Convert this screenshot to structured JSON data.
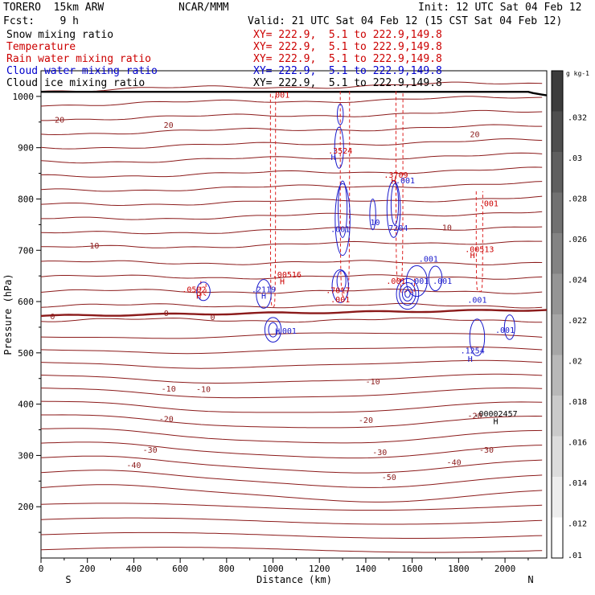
{
  "header": {
    "model": "TORERO  15km ARW",
    "center": "NCAR/MMM",
    "init": "Init: 12 UTC Sat 04 Feb 12",
    "fcst": "Fcst:    9 h",
    "valid": "Valid: 21 UTC Sat 04 Feb 12 (15 CST Sat 04 Feb 12)"
  },
  "fields": [
    {
      "name": "Snow mixing ratio",
      "xy": "XY= 222.9,  5.1 to 222.9,149.8",
      "color": "#000000"
    },
    {
      "name": "Temperature",
      "xy": "XY= 222.9,  5.1 to 222.9,149.8",
      "color": "#cc0000"
    },
    {
      "name": "Rain water mixing ratio",
      "xy": "XY= 222.9,  5.1 to 222.9,149.8",
      "color": "#cc0000"
    },
    {
      "name": "Cloud water mixing ratio",
      "xy": "XY= 222.9,  5.1 to 222.9,149.8",
      "color": "#0000cc"
    },
    {
      "name": "Cloud ice mixing ratio",
      "xy": "XY= 222.9,  5.1 to 222.9,149.8",
      "color": "#000000"
    }
  ],
  "colors": {
    "temperature": "#8b1a1a",
    "freezing": "#8b1a1a",
    "rain": "#dd2020",
    "cloudwater": "#1a1acc",
    "ice": "#000000"
  },
  "chart_data": {
    "type": "contour",
    "xlabel": "Distance (km)",
    "ylabel": "Pressure (hPa)",
    "xlim": [
      0,
      2180
    ],
    "ylim": [
      1050,
      100
    ],
    "xticks": [
      0,
      200,
      400,
      600,
      800,
      1000,
      1200,
      1400,
      1600,
      1800,
      2000
    ],
    "yticks": [
      200,
      300,
      400,
      500,
      600,
      700,
      800,
      900,
      1000
    ],
    "end_labels": {
      "left": "S",
      "right": "N"
    },
    "temperature_levels": [
      -50,
      -40,
      -30,
      -20,
      -10,
      0,
      10,
      20
    ],
    "temperature_labels": [
      {
        "text": "-50",
        "x": 1500,
        "p": 258
      },
      {
        "text": "-40",
        "x": 400,
        "p": 282
      },
      {
        "text": "-40",
        "x": 1780,
        "p": 287
      },
      {
        "text": "-30",
        "x": 470,
        "p": 312
      },
      {
        "text": "-30",
        "x": 1460,
        "p": 307
      },
      {
        "text": "-30",
        "x": 1920,
        "p": 312
      },
      {
        "text": "-20",
        "x": 540,
        "p": 372
      },
      {
        "text": "-20",
        "x": 1400,
        "p": 370
      },
      {
        "text": "-20",
        "x": 1870,
        "p": 378
      },
      {
        "text": "-10",
        "x": 550,
        "p": 431
      },
      {
        "text": "-10",
        "x": 700,
        "p": 430
      },
      {
        "text": "-10",
        "x": 1430,
        "p": 445
      },
      {
        "text": "0",
        "x": 50,
        "p": 572
      },
      {
        "text": "0",
        "x": 540,
        "p": 578
      },
      {
        "text": "0",
        "x": 740,
        "p": 570
      },
      {
        "text": "10",
        "x": 230,
        "p": 710
      },
      {
        "text": "10",
        "x": 1750,
        "p": 745
      },
      {
        "text": "20",
        "x": 80,
        "p": 955
      },
      {
        "text": "20",
        "x": 550,
        "p": 945
      },
      {
        "text": "20",
        "x": 1870,
        "p": 927
      }
    ],
    "extrema_labels": [
      {
        "text": "H",
        "x": 1960,
        "p": 367,
        "color": "#000000"
      },
      {
        "text": ".00002457",
        "x": 1960,
        "p": 382,
        "color": "#000000"
      },
      {
        "text": "H",
        "x": 1020,
        "p": 543,
        "color": "#1a1acc"
      },
      {
        "text": ".001",
        "x": 1060,
        "p": 544,
        "color": "#1a1acc"
      },
      {
        "text": "H",
        "x": 1850,
        "p": 489,
        "color": "#1a1acc"
      },
      {
        "text": ".1254",
        "x": 1860,
        "p": 505,
        "color": "#1a1acc"
      },
      {
        "text": ".001",
        "x": 2000,
        "p": 545,
        "color": "#1a1acc"
      },
      {
        "text": "H",
        "x": 680,
        "p": 612,
        "color": "#cc0000"
      },
      {
        "text": ".0502",
        "x": 660,
        "p": 624,
        "color": "#cc0000"
      },
      {
        "text": "H",
        "x": 960,
        "p": 612,
        "color": "#1a1acc"
      },
      {
        "text": ".2119",
        "x": 960,
        "p": 624,
        "color": "#1a1acc"
      },
      {
        "text": "H",
        "x": 1040,
        "p": 640,
        "color": "#cc0000"
      },
      {
        "text": ".00516",
        "x": 1060,
        "p": 653,
        "color": "#cc0000"
      },
      {
        "text": ".001",
        "x": 1290,
        "p": 605,
        "color": "#cc0000"
      },
      {
        "text": ".7017",
        "x": 1280,
        "p": 623,
        "color": "#cc0000"
      },
      {
        "text": ".001",
        "x": 1530,
        "p": 641,
        "color": "#cc0000"
      },
      {
        "text": ".001",
        "x": 1630,
        "p": 641,
        "color": "#1a1acc"
      },
      {
        "text": ".001",
        "x": 1730,
        "p": 641,
        "color": "#1a1acc"
      },
      {
        "text": ".001",
        "x": 1880,
        "p": 604,
        "color": "#1a1acc"
      },
      {
        "text": ".001",
        "x": 1670,
        "p": 684,
        "color": "#1a1acc"
      },
      {
        "text": "H",
        "x": 1860,
        "p": 691,
        "color": "#cc0000"
      },
      {
        "text": ".00513",
        "x": 1890,
        "p": 703,
        "color": "#cc0000"
      },
      {
        "text": ".001",
        "x": 1290,
        "p": 742,
        "color": "#1a1acc"
      },
      {
        "text": "10",
        "x": 1440,
        "p": 755,
        "color": "#1a1acc"
      },
      {
        "text": "7204",
        "x": 1540,
        "p": 744,
        "color": "#1a1acc"
      },
      {
        "text": "H",
        "x": 1520,
        "p": 836,
        "color": "#cc0000"
      },
      {
        "text": ".001",
        "x": 1570,
        "p": 837,
        "color": "#1a1acc"
      },
      {
        "text": ".3709",
        "x": 1530,
        "p": 848,
        "color": "#cc0000"
      },
      {
        "text": ".001",
        "x": 1930,
        "p": 792,
        "color": "#cc0000"
      },
      {
        "text": "H",
        "x": 1260,
        "p": 882,
        "color": "#1a1acc"
      },
      {
        "text": ".3524",
        "x": 1290,
        "p": 895,
        "color": "#cc0000"
      },
      {
        "text": ".001",
        "x": 1030,
        "p": 1004,
        "color": "#cc0000"
      }
    ],
    "colorbar": {
      "unit": "g kg-1",
      "ticks": [
        ".032",
        ".03",
        ".028",
        ".026",
        ".024",
        ".022",
        ".02",
        ".018",
        ".016",
        ".014",
        ".012",
        ".01"
      ]
    }
  }
}
